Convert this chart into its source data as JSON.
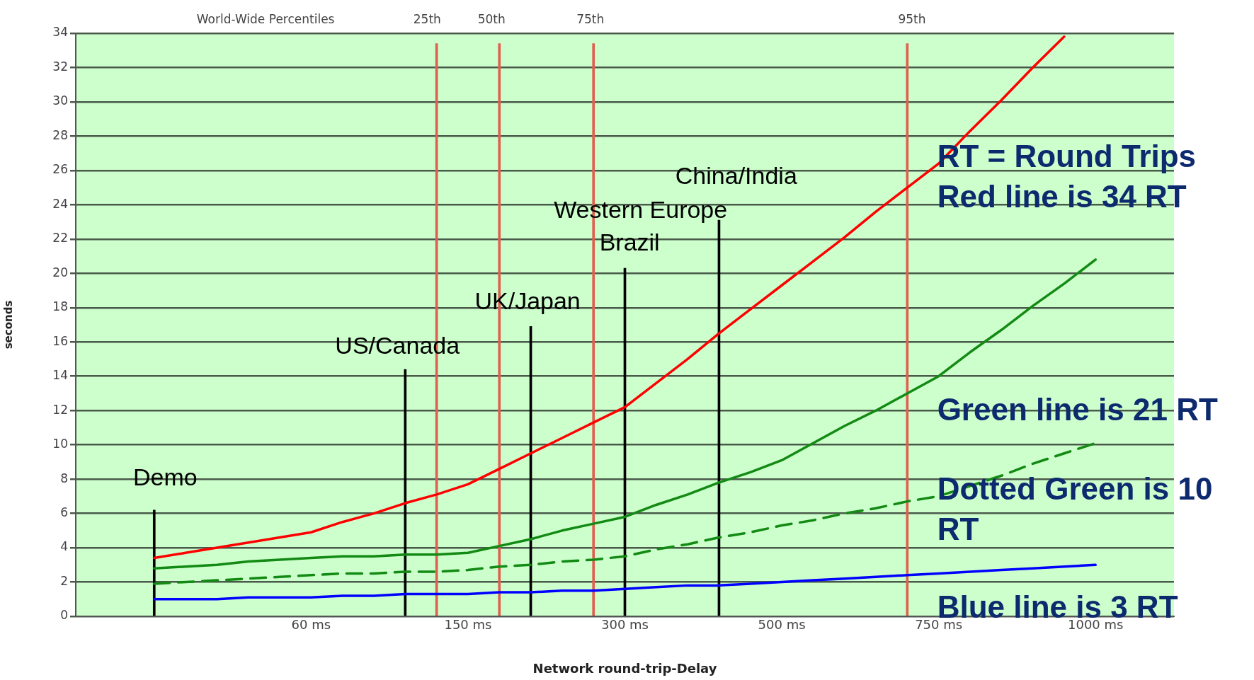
{
  "chart_data": {
    "type": "line",
    "xlabel": "Network round-trip-Delay",
    "ylabel": "seconds",
    "categories": [
      null,
      null,
      null,
      null,
      null,
      null,
      null,
      "60 ms",
      null,
      null,
      null,
      null,
      "150 ms",
      null,
      null,
      null,
      null,
      "300 ms",
      null,
      null,
      null,
      null,
      "500 ms",
      null,
      null,
      null,
      null,
      "750 ms",
      null,
      null,
      null,
      null,
      "1000 ms",
      null,
      null
    ],
    "ylim": [
      0,
      34
    ],
    "yticks": [
      0,
      2,
      4,
      6,
      8,
      10,
      12,
      14,
      16,
      18,
      20,
      22,
      24,
      26,
      28,
      30,
      32,
      34
    ],
    "grid": "y",
    "legend": false,
    "marker": "none",
    "series": [
      {
        "name": "Red line is 34 RT",
        "color": "#ff0000",
        "values": [
          null,
          null,
          3.4,
          3.7,
          4.0,
          4.3,
          4.6,
          4.9,
          5.5,
          6.0,
          6.6,
          7.1,
          7.7,
          8.6,
          9.5,
          10.4,
          11.3,
          12.2,
          13.6,
          15.0,
          16.5,
          17.9,
          19.3,
          20.7,
          22.1,
          23.6,
          25.0,
          26.4,
          28.3,
          30.1,
          32.0,
          33.8,
          null,
          null,
          null
        ]
      },
      {
        "name": "Green line is 21 RT",
        "color": "#138a13",
        "values": [
          null,
          null,
          2.8,
          2.9,
          3.0,
          3.2,
          3.3,
          3.4,
          3.5,
          3.5,
          3.6,
          3.6,
          3.7,
          4.1,
          4.5,
          5.0,
          5.4,
          5.8,
          6.5,
          7.1,
          7.8,
          8.4,
          9.1,
          10.1,
          11.1,
          12.0,
          13.0,
          14,
          15.4,
          16.7,
          18.1,
          19.4,
          20.8,
          null,
          null
        ]
      },
      {
        "name": "Dotted Green is 10 RT",
        "color": "#138a13",
        "line_style": "dashed",
        "values": [
          null,
          null,
          1.9,
          2.0,
          2.1,
          2.2,
          2.3,
          2.4,
          2.5,
          2.5,
          2.6,
          2.6,
          2.7,
          2.9,
          3.0,
          3.2,
          3.3,
          3.5,
          3.9,
          4.2,
          4.6,
          4.9,
          5.3,
          5.6,
          6.0,
          6.3,
          6.7,
          7.0,
          7.6,
          8.2,
          8.9,
          9.5,
          10.1,
          null,
          null
        ]
      },
      {
        "name": "Blue line is 3 RT",
        "color": "#0000ff",
        "values": [
          null,
          null,
          1.0,
          1.0,
          1.0,
          1.1,
          1.1,
          1.1,
          1.2,
          1.2,
          1.3,
          1.3,
          1.3,
          1.4,
          1.4,
          1.5,
          1.5,
          1.6,
          1.7,
          1.8,
          1.8,
          1.9,
          2.0,
          2.1,
          2.2,
          2.3,
          2.4,
          2.5,
          2.6,
          2.7,
          2.8,
          2.9,
          3.0,
          null,
          null
        ]
      },
      {
        "type": "bar",
        "color": "#e06050",
        "values": [
          null,
          null,
          null,
          null,
          null,
          null,
          null,
          null,
          null,
          null,
          null,
          33.4,
          null,
          33.4,
          null,
          null,
          33.4,
          null,
          null,
          null,
          null,
          null,
          null,
          null,
          null,
          null,
          33.4,
          null,
          null,
          null,
          null,
          null,
          null,
          null,
          null
        ]
      },
      {
        "type": "bar",
        "color": "#000000",
        "values": [
          null,
          null,
          6.2,
          null,
          null,
          null,
          null,
          null,
          null,
          null,
          14.4,
          null,
          null,
          null,
          16.9,
          null,
          null,
          20.3,
          null,
          null,
          23.1,
          null,
          null,
          null,
          null,
          null,
          null,
          null,
          null,
          null,
          null,
          null,
          null,
          null,
          null
        ]
      }
    ],
    "annotations": [
      "World-Wide Percentiles",
      "25th",
      "50th",
      "75th",
      "95th",
      "Demo",
      "US/Canada",
      "UK/Japan",
      "Western Europe",
      "Brazil",
      "China/India",
      "RT = Round Trips"
    ]
  }
}
